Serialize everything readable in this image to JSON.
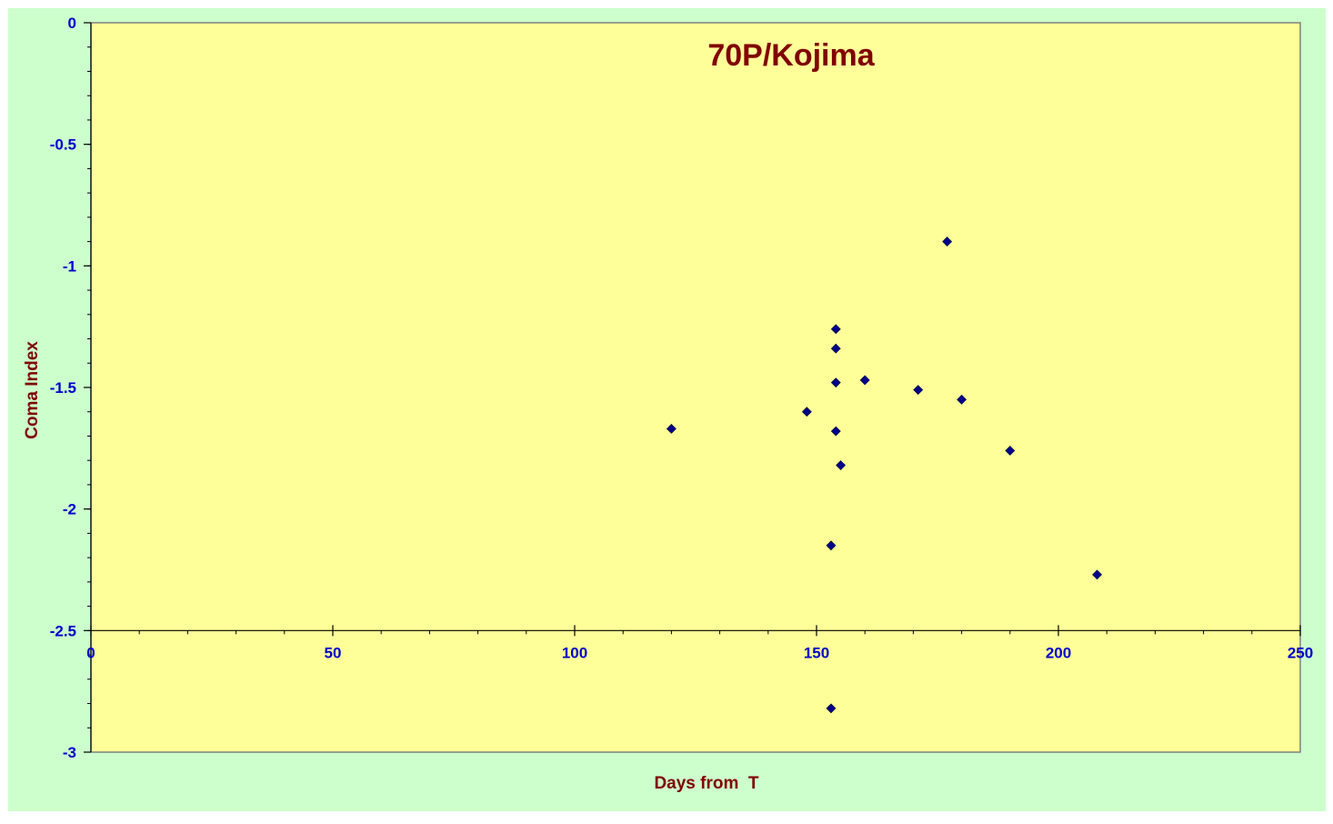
{
  "colors": {
    "outer_background": "#ccffcc",
    "plot_background": "#ffff99",
    "tick_label": "#0000cc",
    "title": "#800000",
    "axis": "#808080",
    "marker": "#00008b"
  },
  "chart_data": {
    "type": "scatter",
    "title": "70P/Kojima",
    "xlabel": "Days from  T",
    "ylabel": "Coma Index",
    "xlim": [
      0,
      250
    ],
    "ylim": [
      -3,
      0
    ],
    "x_axis_crosses_y_at": -2.5,
    "x_ticks": [
      0,
      50,
      100,
      150,
      200,
      250
    ],
    "y_ticks": [
      0,
      -0.5,
      -1,
      -1.5,
      -2,
      -2.5,
      -3
    ],
    "x_tick_labels": [
      "0",
      "50",
      "100",
      "150",
      "200",
      "250"
    ],
    "y_tick_labels": [
      "0",
      "-0.5",
      "-1",
      "-1.5",
      "-2",
      "-2.5",
      "-3"
    ],
    "grid": false,
    "legend": "none",
    "marker": "diamond",
    "points": [
      {
        "x": 120,
        "y": -1.67
      },
      {
        "x": 148,
        "y": -1.6
      },
      {
        "x": 153,
        "y": -2.15
      },
      {
        "x": 153,
        "y": -2.82
      },
      {
        "x": 154,
        "y": -1.26
      },
      {
        "x": 154,
        "y": -1.34
      },
      {
        "x": 154,
        "y": -1.48
      },
      {
        "x": 154,
        "y": -1.68
      },
      {
        "x": 155,
        "y": -1.82
      },
      {
        "x": 160,
        "y": -1.47
      },
      {
        "x": 171,
        "y": -1.51
      },
      {
        "x": 177,
        "y": -0.9
      },
      {
        "x": 180,
        "y": -1.55
      },
      {
        "x": 190,
        "y": -1.76
      },
      {
        "x": 208,
        "y": -2.27
      }
    ]
  }
}
